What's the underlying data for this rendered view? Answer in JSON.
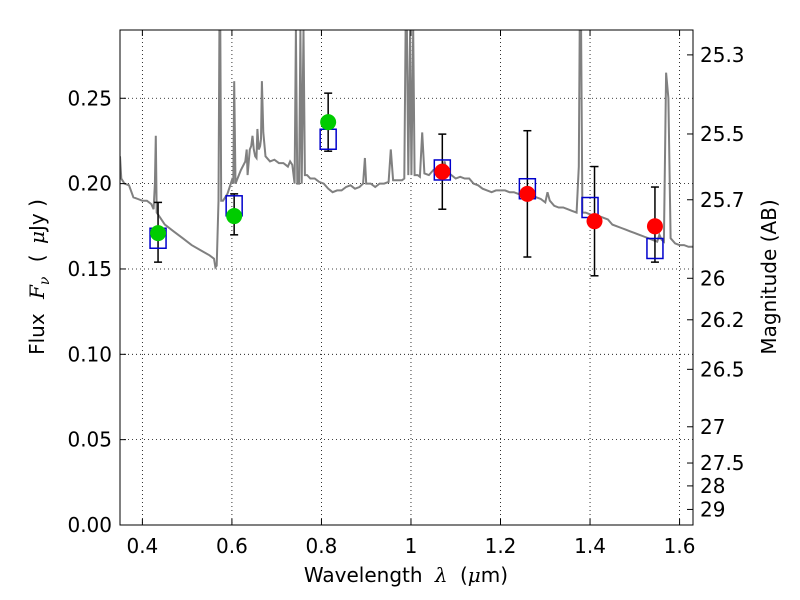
{
  "chart_data": {
    "type": "scatter",
    "title": "",
    "xlabel_parts": {
      "pre": "Wavelength",
      "sym": "λ",
      "post": "(",
      "unit_sym": "μ",
      "unit": "m)"
    },
    "ylabel_parts": {
      "pre": "Flux",
      "sym": "F",
      "sub": "ν",
      "post": "(",
      "unit_sym": "μ",
      "unit": "Jy )"
    },
    "y2label": "Magnitude (AB)",
    "xlim": [
      0.35,
      1.63
    ],
    "ylim": [
      0.0,
      0.29
    ],
    "grid": true,
    "xticks": [
      {
        "v": 0.4,
        "label": "0.4"
      },
      {
        "v": 0.6,
        "label": "0.6"
      },
      {
        "v": 0.8,
        "label": "0.8"
      },
      {
        "v": 1.0,
        "label": "1"
      },
      {
        "v": 1.2,
        "label": "1.2"
      },
      {
        "v": 1.4,
        "label": "1.4"
      },
      {
        "v": 1.6,
        "label": "1.6"
      }
    ],
    "yticks": [
      {
        "v": 0.0,
        "label": "0.00"
      },
      {
        "v": 0.05,
        "label": "0.05"
      },
      {
        "v": 0.1,
        "label": "0.10"
      },
      {
        "v": 0.15,
        "label": "0.15"
      },
      {
        "v": 0.2,
        "label": "0.20"
      },
      {
        "v": 0.25,
        "label": "0.25"
      }
    ],
    "y2ticks": [
      {
        "label": "25.3",
        "mag": 25.3
      },
      {
        "label": "25.5",
        "mag": 25.5
      },
      {
        "label": "25.7",
        "mag": 25.7
      },
      {
        "label": "26",
        "mag": 26
      },
      {
        "label": "26.2",
        "mag": 26.2
      },
      {
        "label": "26.5",
        "mag": 26.5
      },
      {
        "label": "27",
        "mag": 27
      },
      {
        "label": "27.5",
        "mag": 27.5
      },
      {
        "label": "28",
        "mag": 28
      },
      {
        "label": "29",
        "mag": 29
      }
    ],
    "model_spectrum": {
      "color": "#808080",
      "points": [
        [
          0.35,
          0.216
        ],
        [
          0.353,
          0.203
        ],
        [
          0.36,
          0.2
        ],
        [
          0.37,
          0.199
        ],
        [
          0.38,
          0.192
        ],
        [
          0.39,
          0.191
        ],
        [
          0.4,
          0.19
        ],
        [
          0.41,
          0.19
        ],
        [
          0.42,
          0.188
        ],
        [
          0.425,
          0.185
        ],
        [
          0.428,
          0.2
        ],
        [
          0.43,
          0.228
        ],
        [
          0.432,
          0.183
        ],
        [
          0.44,
          0.18
        ],
        [
          0.45,
          0.176
        ],
        [
          0.47,
          0.172
        ],
        [
          0.49,
          0.168
        ],
        [
          0.51,
          0.164
        ],
        [
          0.53,
          0.161
        ],
        [
          0.55,
          0.158
        ],
        [
          0.56,
          0.156
        ],
        [
          0.563,
          0.151
        ],
        [
          0.566,
          0.152
        ],
        [
          0.57,
          0.19
        ],
        [
          0.572,
          0.29
        ],
        [
          0.574,
          0.29
        ],
        [
          0.576,
          0.19
        ],
        [
          0.58,
          0.19
        ],
        [
          0.59,
          0.194
        ],
        [
          0.595,
          0.198
        ],
        [
          0.6,
          0.202
        ],
        [
          0.603,
          0.2
        ],
        [
          0.605,
          0.26
        ],
        [
          0.608,
          0.2
        ],
        [
          0.62,
          0.208
        ],
        [
          0.63,
          0.213
        ],
        [
          0.633,
          0.22
        ],
        [
          0.635,
          0.205
        ],
        [
          0.64,
          0.22
        ],
        [
          0.643,
          0.222
        ],
        [
          0.646,
          0.228
        ],
        [
          0.649,
          0.22
        ],
        [
          0.652,
          0.216
        ],
        [
          0.655,
          0.215
        ],
        [
          0.657,
          0.232
        ],
        [
          0.66,
          0.22
        ],
        [
          0.663,
          0.222
        ],
        [
          0.665,
          0.226
        ],
        [
          0.667,
          0.26
        ],
        [
          0.67,
          0.23
        ],
        [
          0.675,
          0.216
        ],
        [
          0.685,
          0.213
        ],
        [
          0.695,
          0.214
        ],
        [
          0.705,
          0.212
        ],
        [
          0.715,
          0.212
        ],
        [
          0.725,
          0.21
        ],
        [
          0.73,
          0.213
        ],
        [
          0.735,
          0.211
        ],
        [
          0.74,
          0.2
        ],
        [
          0.743,
          0.29
        ],
        [
          0.746,
          0.2
        ],
        [
          0.75,
          0.2
        ],
        [
          0.753,
          0.29
        ],
        [
          0.756,
          0.2
        ],
        [
          0.76,
          0.29
        ],
        [
          0.763,
          0.205
        ],
        [
          0.768,
          0.205
        ],
        [
          0.775,
          0.203
        ],
        [
          0.785,
          0.203
        ],
        [
          0.795,
          0.201
        ],
        [
          0.805,
          0.2
        ],
        [
          0.815,
          0.197
        ],
        [
          0.825,
          0.195
        ],
        [
          0.835,
          0.196
        ],
        [
          0.845,
          0.196
        ],
        [
          0.855,
          0.198
        ],
        [
          0.865,
          0.199
        ],
        [
          0.875,
          0.197
        ],
        [
          0.885,
          0.198
        ],
        [
          0.893,
          0.2
        ],
        [
          0.897,
          0.215
        ],
        [
          0.9,
          0.2
        ],
        [
          0.91,
          0.2
        ],
        [
          0.92,
          0.198
        ],
        [
          0.93,
          0.2
        ],
        [
          0.94,
          0.2
        ],
        [
          0.95,
          0.201
        ],
        [
          0.955,
          0.22
        ],
        [
          0.96,
          0.202
        ],
        [
          0.97,
          0.202
        ],
        [
          0.98,
          0.202
        ],
        [
          0.985,
          0.203
        ],
        [
          0.988,
          0.29
        ],
        [
          0.991,
          0.29
        ],
        [
          0.994,
          0.205
        ],
        [
          0.998,
          0.29
        ],
        [
          1.001,
          0.205
        ],
        [
          1.005,
          0.29
        ],
        [
          1.008,
          0.205
        ],
        [
          1.015,
          0.205
        ],
        [
          1.02,
          0.204
        ],
        [
          1.025,
          0.23
        ],
        [
          1.03,
          0.206
        ],
        [
          1.04,
          0.205
        ],
        [
          1.05,
          0.208
        ],
        [
          1.06,
          0.207
        ],
        [
          1.07,
          0.207
        ],
        [
          1.075,
          0.213
        ],
        [
          1.08,
          0.207
        ],
        [
          1.09,
          0.205
        ],
        [
          1.1,
          0.203
        ],
        [
          1.11,
          0.204
        ],
        [
          1.12,
          0.203
        ],
        [
          1.13,
          0.203
        ],
        [
          1.14,
          0.2
        ],
        [
          1.15,
          0.199
        ],
        [
          1.16,
          0.197
        ],
        [
          1.17,
          0.196
        ],
        [
          1.18,
          0.195
        ],
        [
          1.19,
          0.196
        ],
        [
          1.2,
          0.196
        ],
        [
          1.21,
          0.196
        ],
        [
          1.22,
          0.195
        ],
        [
          1.23,
          0.195
        ],
        [
          1.24,
          0.194
        ],
        [
          1.25,
          0.195
        ],
        [
          1.26,
          0.194
        ],
        [
          1.27,
          0.193
        ],
        [
          1.28,
          0.192
        ],
        [
          1.29,
          0.191
        ],
        [
          1.3,
          0.189
        ],
        [
          1.305,
          0.195
        ],
        [
          1.31,
          0.19
        ],
        [
          1.32,
          0.187
        ],
        [
          1.33,
          0.186
        ],
        [
          1.34,
          0.186
        ],
        [
          1.35,
          0.185
        ],
        [
          1.36,
          0.184
        ],
        [
          1.37,
          0.183
        ],
        [
          1.375,
          0.21
        ],
        [
          1.377,
          0.29
        ],
        [
          1.38,
          0.29
        ],
        [
          1.383,
          0.183
        ],
        [
          1.39,
          0.183
        ],
        [
          1.4,
          0.182
        ],
        [
          1.41,
          0.181
        ],
        [
          1.42,
          0.181
        ],
        [
          1.43,
          0.18
        ],
        [
          1.44,
          0.179
        ],
        [
          1.45,
          0.176
        ],
        [
          1.46,
          0.175
        ],
        [
          1.47,
          0.174
        ],
        [
          1.48,
          0.173
        ],
        [
          1.49,
          0.172
        ],
        [
          1.5,
          0.171
        ],
        [
          1.51,
          0.17
        ],
        [
          1.52,
          0.169
        ],
        [
          1.53,
          0.168
        ],
        [
          1.54,
          0.167
        ],
        [
          1.55,
          0.166
        ],
        [
          1.555,
          0.17
        ],
        [
          1.56,
          0.167
        ],
        [
          1.565,
          0.166
        ],
        [
          1.57,
          0.265
        ],
        [
          1.575,
          0.25
        ],
        [
          1.58,
          0.168
        ],
        [
          1.59,
          0.165
        ],
        [
          1.6,
          0.164
        ],
        [
          1.61,
          0.164
        ],
        [
          1.62,
          0.163
        ],
        [
          1.63,
          0.163
        ]
      ]
    },
    "model_photometry": {
      "marker": "open-square",
      "color": "#0000cc",
      "points": [
        {
          "x": 0.435,
          "y": 0.168
        },
        {
          "x": 0.605,
          "y": 0.187
        },
        {
          "x": 0.815,
          "y": 0.226
        },
        {
          "x": 1.07,
          "y": 0.208
        },
        {
          "x": 1.26,
          "y": 0.197
        },
        {
          "x": 1.4,
          "y": 0.186
        },
        {
          "x": 1.545,
          "y": 0.162
        }
      ]
    },
    "observed_optical": {
      "marker": "filled-circle",
      "color": "#00cc00",
      "points": [
        {
          "x": 0.435,
          "y": 0.171,
          "err": [
            0.154,
            0.189
          ]
        },
        {
          "x": 0.605,
          "y": 0.181,
          "err": [
            0.17,
            0.194
          ]
        },
        {
          "x": 0.815,
          "y": 0.236,
          "err": [
            0.219,
            0.253
          ]
        }
      ]
    },
    "observed_nir": {
      "marker": "filled-circle",
      "color": "#ff0000",
      "points": [
        {
          "x": 1.07,
          "y": 0.207,
          "err": [
            0.185,
            0.229
          ]
        },
        {
          "x": 1.26,
          "y": 0.194,
          "err": [
            0.157,
            0.231
          ]
        },
        {
          "x": 1.41,
          "y": 0.178,
          "err": [
            0.146,
            0.21
          ]
        },
        {
          "x": 1.545,
          "y": 0.175,
          "err": [
            0.154,
            0.198
          ]
        }
      ]
    }
  }
}
